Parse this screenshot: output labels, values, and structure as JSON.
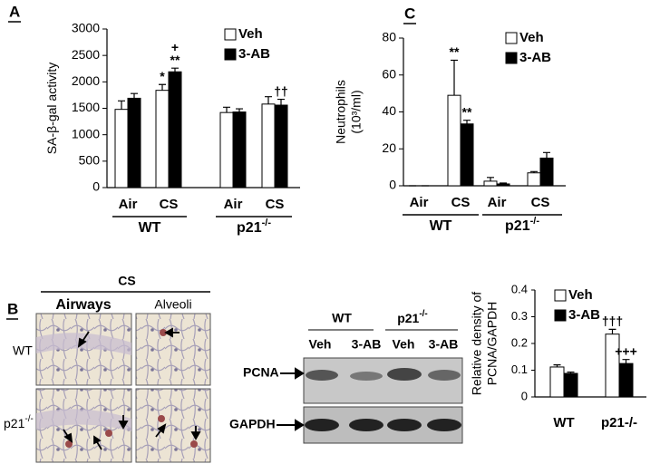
{
  "chart_data": [
    {
      "type": "bar",
      "panel": "A",
      "ylabel": [
        "SA-β-gal activity"
      ],
      "categories": [
        "Air",
        "CS",
        "Air",
        "CS"
      ],
      "groups": [
        {
          "text": "WT"
        },
        {
          "text": "p21",
          "sup": "-/-"
        }
      ],
      "series": [
        {
          "name": "Veh",
          "color": "#ffffff",
          "values": [
            1480,
            1840,
            1420,
            1580
          ],
          "errors": [
            160,
            110,
            100,
            140
          ],
          "annotations": [
            null,
            [
              "*"
            ],
            null,
            null
          ]
        },
        {
          "name": "3-AB",
          "color": "#000000",
          "values": [
            1690,
            2190,
            1430,
            1560
          ],
          "errors": [
            90,
            70,
            60,
            110
          ],
          "annotations": [
            null,
            [
              "**",
              "+"
            ],
            null,
            [
              "††"
            ]
          ]
        }
      ],
      "ylim": [
        0,
        3000
      ],
      "yticks": [
        0,
        500,
        1000,
        1500,
        2000,
        2500,
        3000
      ]
    },
    {
      "type": "bar",
      "panel": "C",
      "ylabel": [
        "Neutrophils",
        "(10³/ml)"
      ],
      "categories": [
        "Air",
        "CS",
        "Air",
        "CS"
      ],
      "groups": [
        {
          "text": "WT"
        },
        {
          "text": "p21",
          "sup": "-/-"
        }
      ],
      "series": [
        {
          "name": "Veh",
          "color": "#ffffff",
          "values": [
            0,
            49,
            2.5,
            7
          ],
          "errors": [
            0,
            19,
            2,
            0.7
          ],
          "annotations": [
            null,
            [
              "**"
            ],
            null,
            null
          ]
        },
        {
          "name": "3-AB",
          "color": "#000000",
          "values": [
            0,
            33.5,
            1,
            15
          ],
          "errors": [
            0,
            2,
            0.5,
            3
          ],
          "annotations": [
            null,
            [
              "**"
            ],
            null,
            null
          ]
        }
      ],
      "ylim": [
        0,
        80
      ],
      "yticks": [
        0,
        20,
        40,
        60,
        80
      ]
    },
    {
      "type": "bar",
      "ylabel": [
        "Relative density of",
        "PCNA/GAPDH"
      ],
      "categories": [
        "WT",
        "p21-/-"
      ],
      "series": [
        {
          "name": "Veh",
          "color": "#ffffff",
          "values": [
            0.112,
            0.235
          ],
          "errors": [
            0.008,
            0.018
          ],
          "annotations": [
            null,
            [
              "†††"
            ]
          ]
        },
        {
          "name": "3-AB",
          "color": "#000000",
          "values": [
            0.088,
            0.125
          ],
          "errors": [
            0.005,
            0.015
          ],
          "annotations": [
            null,
            [
              "+++"
            ]
          ]
        }
      ],
      "ylim": [
        0,
        0.4
      ],
      "yticks": [
        0,
        0.1,
        0.2,
        0.3,
        0.4
      ]
    }
  ],
  "panel_b": {
    "label": "B",
    "micrographs": {
      "title": "CS",
      "columns": [
        "Airways",
        "Alveoli"
      ],
      "rows": [
        {
          "text": "WT"
        },
        {
          "text": "p21",
          "sup": "-/-"
        }
      ]
    },
    "blot": {
      "groups": [
        {
          "text": "WT"
        },
        {
          "text": "p21",
          "sup": "-/-"
        }
      ],
      "lanes": [
        "Veh",
        "3-AB",
        "Veh",
        "3-AB"
      ],
      "bands": [
        "PCNA",
        "GAPDH"
      ]
    }
  }
}
